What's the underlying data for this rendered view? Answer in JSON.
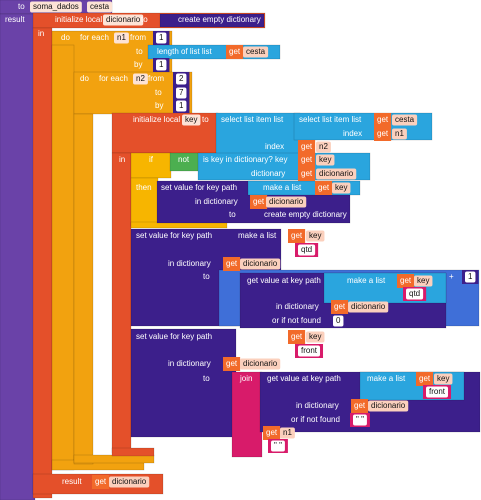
{
  "lines": [
    [
      "to",
      "soma_dados",
      "cesta"
    ],
    [
      "result",
      "initialize local",
      "dicionario",
      "to",
      "create empty dictionary"
    ],
    [
      "in"
    ],
    [
      "do",
      "for each",
      "n1",
      "from",
      1
    ],
    [
      "to",
      "length of list  list",
      "get",
      "cesta"
    ],
    [
      "by",
      1
    ],
    [
      "do",
      "for each",
      "n2",
      "from",
      2
    ],
    [
      "to",
      7
    ],
    [
      "by",
      1
    ],
    [
      "do",
      "initialize local",
      "key",
      "to",
      "select list item  list",
      "select list item  list",
      "get",
      "cesta"
    ],
    [
      "index",
      "get",
      "n1"
    ],
    [
      "index",
      "get",
      "n2"
    ],
    [
      "in",
      "if",
      "not",
      "is key in dictionary? key",
      "get",
      "key"
    ],
    [
      "dictionary",
      "get",
      "dicionario"
    ],
    [
      "then",
      "set value for key path",
      "make a list",
      "get",
      "key"
    ],
    [
      "in dictionary",
      "get",
      "dicionario"
    ],
    [
      "to",
      "create empty dictionary"
    ],
    [
      "set value for key path",
      "make a list",
      "get",
      "key"
    ],
    [
      "qtd"
    ],
    [
      "in dictionary",
      "get",
      "dicionario"
    ],
    [
      "to",
      "+",
      1
    ],
    [
      "get value at key path",
      "make a list",
      "get",
      "key"
    ],
    [
      "qtd"
    ],
    [
      "in dictionary",
      "get",
      "dicionario"
    ],
    [
      "or if not found",
      0
    ],
    [
      "set value for key path",
      "make a list",
      "get",
      "key"
    ],
    [
      "front"
    ],
    [
      "in dictionary",
      "get",
      "dicionario"
    ],
    [
      "to",
      "join",
      "get value at key path",
      "make a list",
      "get",
      "key"
    ],
    [
      "front"
    ],
    [
      "in dictionary",
      "get",
      "dicionario"
    ],
    [
      "or if not found",
      "\" \""
    ],
    [
      "get",
      "n1"
    ],
    [
      "\" \""
    ],
    [
      "result",
      "get",
      "dicionario"
    ]
  ]
}
